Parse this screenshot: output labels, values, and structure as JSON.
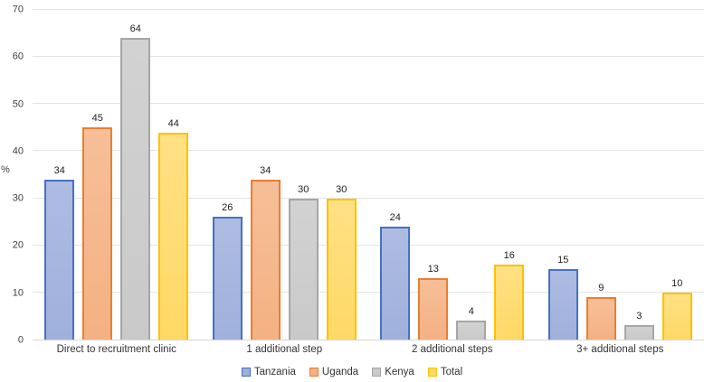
{
  "chart_data": {
    "type": "bar",
    "title": "",
    "categories": [
      "Direct to recruitment clinic",
      "1 additional step",
      "2 additional steps",
      "3+ additional steps"
    ],
    "series": [
      {
        "name": "Tanzania",
        "values": [
          34,
          26,
          24,
          15
        ],
        "fill": "#9fb0dc",
        "fill_light": "#aebce2",
        "border": "#4472c4"
      },
      {
        "name": "Uganda",
        "values": [
          45,
          34,
          13,
          9
        ],
        "fill": "#f4b183",
        "fill_light": "#f6bf98",
        "border": "#ed7d31"
      },
      {
        "name": "Kenya",
        "values": [
          64,
          30,
          4,
          3
        ],
        "fill": "#c9c9c9",
        "fill_light": "#d2d2d2",
        "border": "#a6a6a6"
      },
      {
        "name": "Total",
        "values": [
          44,
          30,
          16,
          10
        ],
        "fill": "#ffd966",
        "fill_light": "#ffe084",
        "border": "#ffc000"
      }
    ],
    "xlabel": "",
    "ylabel": "%",
    "ylim": [
      0,
      70
    ],
    "ytick_step": 10,
    "yticks": [
      0,
      10,
      20,
      30,
      40,
      50,
      60,
      70
    ],
    "grid": true,
    "legend_position": "bottom"
  },
  "colors": {
    "background": "#ffffff",
    "gridline": "#e4e4e4",
    "axis_line": "#d6d6d6",
    "axis_text": "#404040",
    "value_label_text": "#212121",
    "category_text": "#333333"
  }
}
